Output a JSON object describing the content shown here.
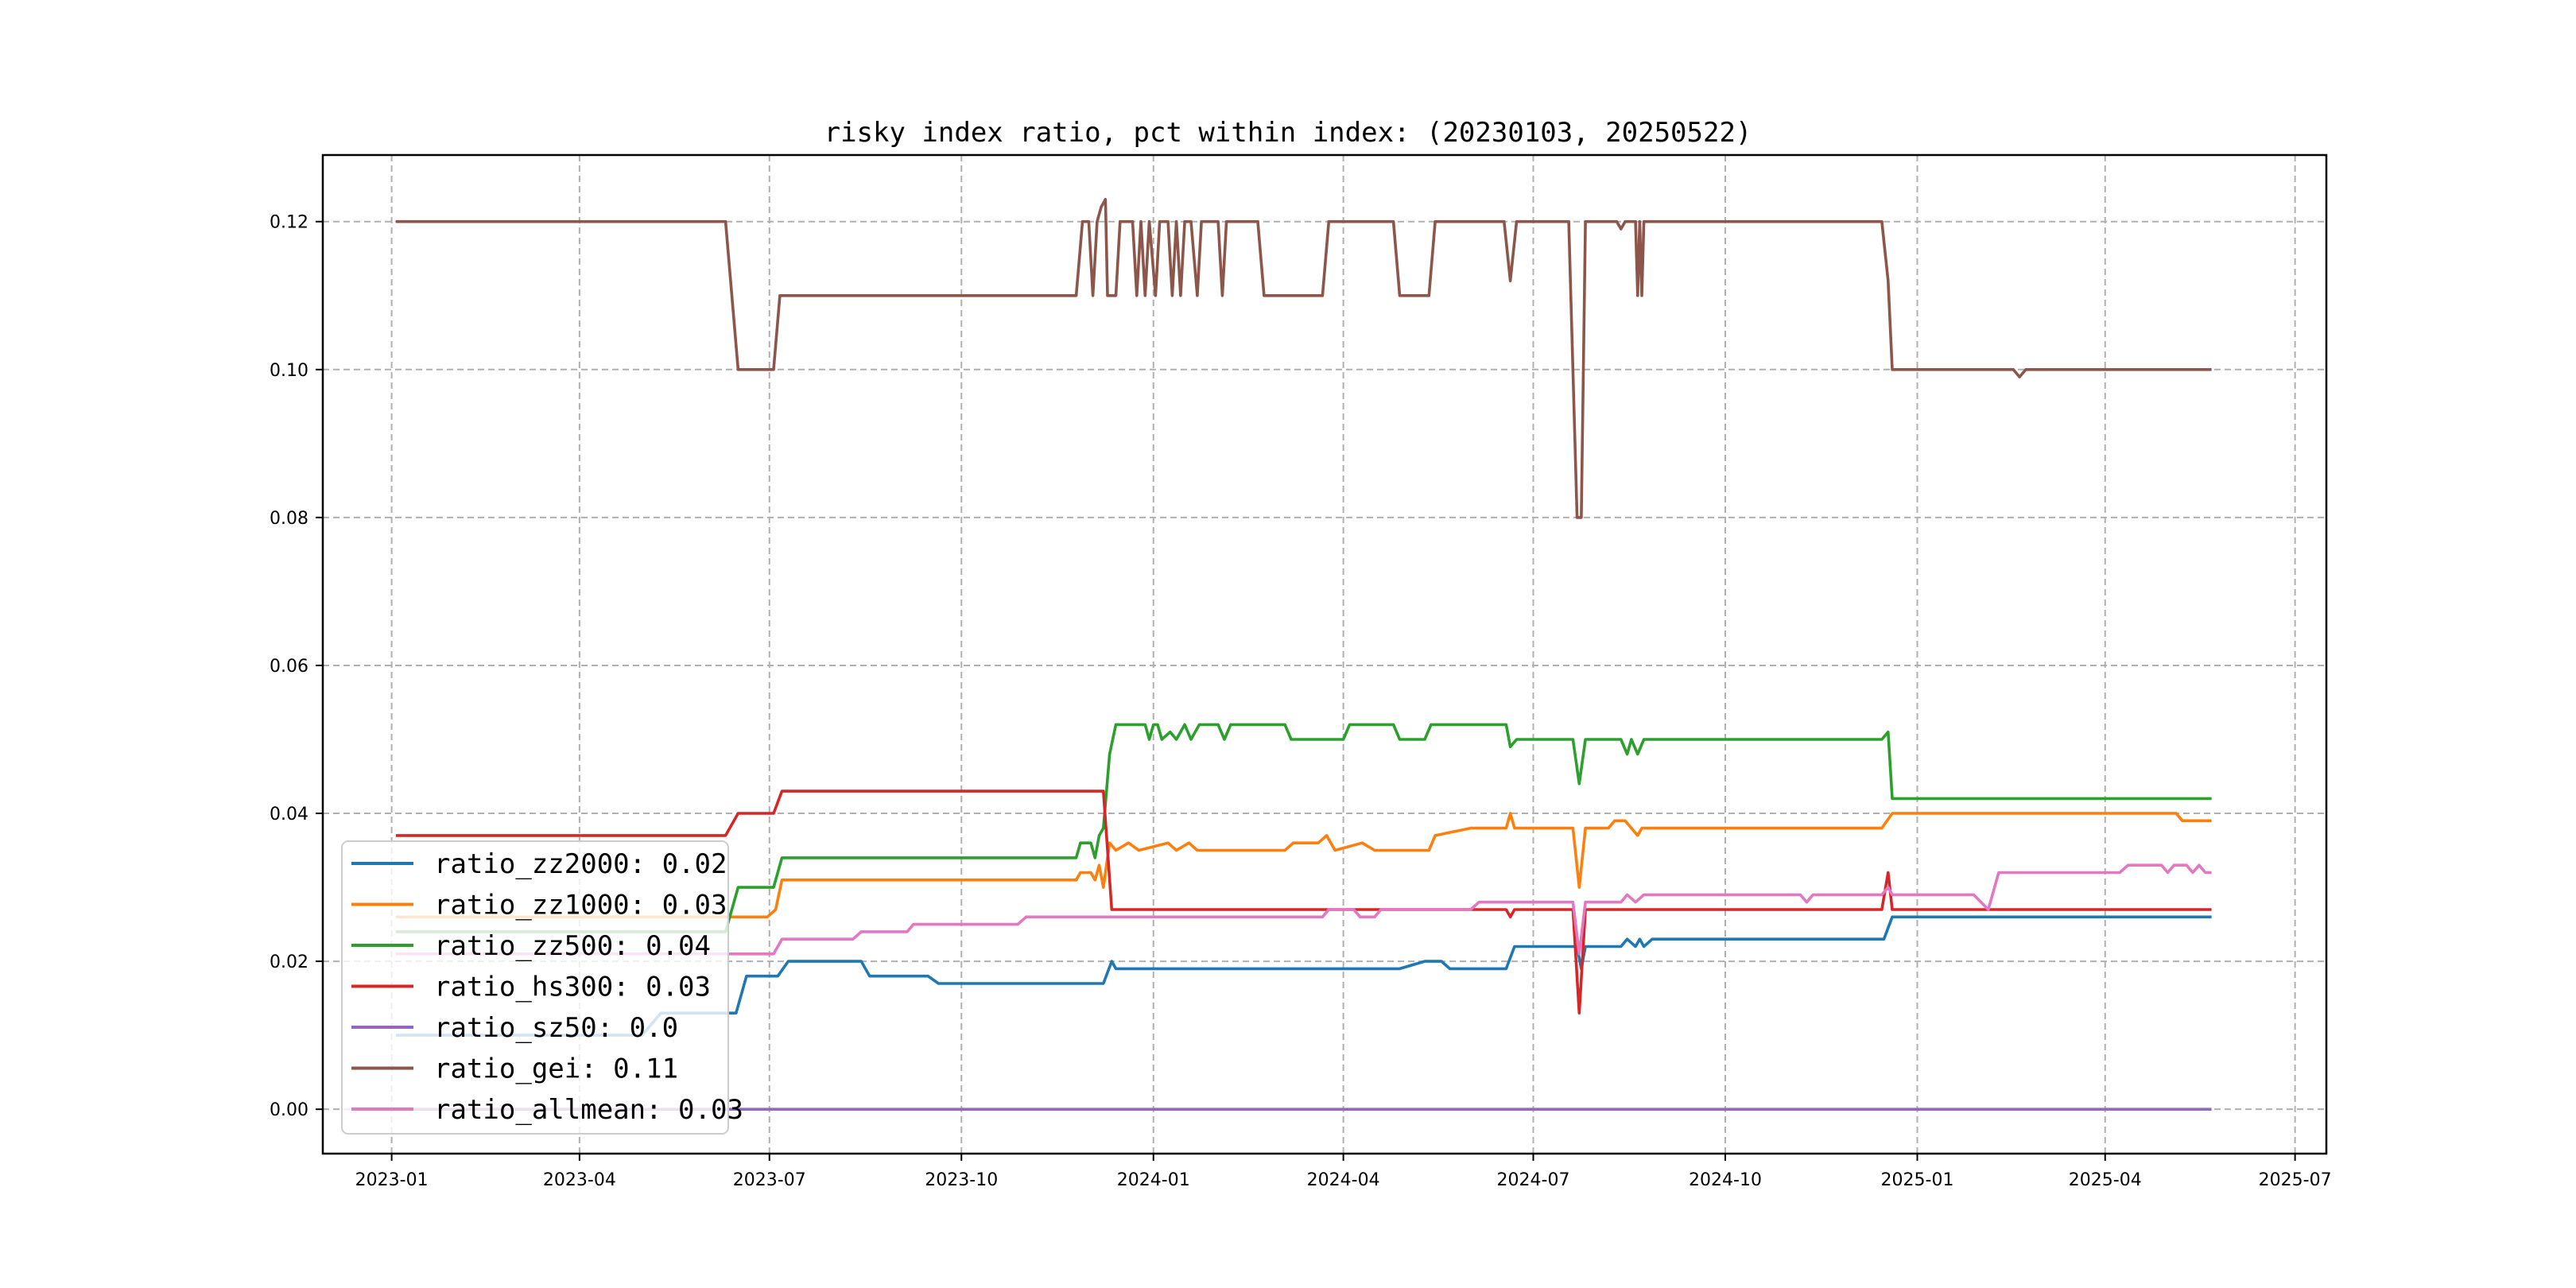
{
  "chart_data": {
    "type": "line",
    "title": "risky index ratio, pct within index: (20230103, 20250522)",
    "xlabel": "",
    "ylabel": "",
    "xlim": [
      "2022-11-29",
      "2025-07-16"
    ],
    "ylim": [
      -0.006,
      0.129
    ],
    "x_ticks": [
      "2023-01",
      "2023-04",
      "2023-07",
      "2023-10",
      "2024-01",
      "2024-04",
      "2024-07",
      "2024-10",
      "2025-01",
      "2025-04",
      "2025-07"
    ],
    "y_ticks": [
      "0.00",
      "0.02",
      "0.04",
      "0.06",
      "0.08",
      "0.10",
      "0.12"
    ],
    "y_tick_values": [
      0.0,
      0.02,
      0.04,
      0.06,
      0.08,
      0.1,
      0.12
    ],
    "grid": true,
    "legend_position": "lower-left",
    "series": [
      {
        "name": "ratio_zz2000: 0.02",
        "color": "#1f77b4",
        "points": [
          [
            "2023-01-03",
            0.01
          ],
          [
            "2023-05-01",
            0.01
          ],
          [
            "2023-05-10",
            0.013
          ],
          [
            "2023-06-15",
            0.013
          ],
          [
            "2023-06-20",
            0.018
          ],
          [
            "2023-07-05",
            0.018
          ],
          [
            "2023-07-10",
            0.02
          ],
          [
            "2023-08-14",
            0.02
          ],
          [
            "2023-08-18",
            0.018
          ],
          [
            "2023-09-15",
            0.018
          ],
          [
            "2023-09-20",
            0.017
          ],
          [
            "2023-12-08",
            0.017
          ],
          [
            "2023-12-12",
            0.02
          ],
          [
            "2023-12-14",
            0.019
          ],
          [
            "2024-04-28",
            0.019
          ],
          [
            "2024-05-10",
            0.02
          ],
          [
            "2024-05-18",
            0.02
          ],
          [
            "2024-05-22",
            0.019
          ],
          [
            "2024-06-18",
            0.019
          ],
          [
            "2024-06-22",
            0.022
          ],
          [
            "2024-07-22",
            0.022
          ],
          [
            "2024-07-24",
            0.019
          ],
          [
            "2024-07-26",
            0.022
          ],
          [
            "2024-08-12",
            0.022
          ],
          [
            "2024-08-15",
            0.023
          ],
          [
            "2024-08-19",
            0.022
          ],
          [
            "2024-08-21",
            0.023
          ],
          [
            "2024-08-23",
            0.022
          ],
          [
            "2024-08-27",
            0.023
          ],
          [
            "2024-12-16",
            0.023
          ],
          [
            "2024-12-20",
            0.026
          ],
          [
            "2025-05-22",
            0.026
          ]
        ]
      },
      {
        "name": "ratio_zz1000: 0.03",
        "color": "#ff7f0e",
        "points": [
          [
            "2023-01-03",
            0.026
          ],
          [
            "2023-06-30",
            0.026
          ],
          [
            "2023-07-04",
            0.027
          ],
          [
            "2023-07-07",
            0.031
          ],
          [
            "2023-11-25",
            0.031
          ],
          [
            "2023-11-27",
            0.032
          ],
          [
            "2023-12-02",
            0.032
          ],
          [
            "2023-12-04",
            0.031
          ],
          [
            "2023-12-06",
            0.033
          ],
          [
            "2023-12-08",
            0.03
          ],
          [
            "2023-12-11",
            0.036
          ],
          [
            "2023-12-14",
            0.035
          ],
          [
            "2023-12-20",
            0.036
          ],
          [
            "2023-12-25",
            0.035
          ],
          [
            "2024-01-08",
            0.036
          ],
          [
            "2024-01-12",
            0.035
          ],
          [
            "2024-01-18",
            0.036
          ],
          [
            "2024-01-22",
            0.035
          ],
          [
            "2024-03-04",
            0.035
          ],
          [
            "2024-03-08",
            0.036
          ],
          [
            "2024-03-20",
            0.036
          ],
          [
            "2024-03-24",
            0.037
          ],
          [
            "2024-03-28",
            0.035
          ],
          [
            "2024-04-10",
            0.036
          ],
          [
            "2024-04-16",
            0.035
          ],
          [
            "2024-05-12",
            0.035
          ],
          [
            "2024-05-15",
            0.037
          ],
          [
            "2024-06-01",
            0.038
          ],
          [
            "2024-06-18",
            0.038
          ],
          [
            "2024-06-20",
            0.04
          ],
          [
            "2024-06-22",
            0.038
          ],
          [
            "2024-07-20",
            0.038
          ],
          [
            "2024-07-23",
            0.03
          ],
          [
            "2024-07-26",
            0.038
          ],
          [
            "2024-08-06",
            0.038
          ],
          [
            "2024-08-09",
            0.039
          ],
          [
            "2024-08-14",
            0.039
          ],
          [
            "2024-08-17",
            0.038
          ],
          [
            "2024-08-20",
            0.037
          ],
          [
            "2024-08-22",
            0.038
          ],
          [
            "2024-12-15",
            0.038
          ],
          [
            "2024-12-20",
            0.04
          ],
          [
            "2025-05-05",
            0.04
          ],
          [
            "2025-05-08",
            0.039
          ],
          [
            "2025-05-22",
            0.039
          ]
        ]
      },
      {
        "name": "ratio_zz500: 0.04",
        "color": "#2ca02c",
        "points": [
          [
            "2023-01-03",
            0.024
          ],
          [
            "2023-06-10",
            0.024
          ],
          [
            "2023-06-16",
            0.03
          ],
          [
            "2023-07-03",
            0.03
          ],
          [
            "2023-07-07",
            0.034
          ],
          [
            "2023-11-25",
            0.034
          ],
          [
            "2023-11-27",
            0.036
          ],
          [
            "2023-12-02",
            0.036
          ],
          [
            "2023-12-04",
            0.034
          ],
          [
            "2023-12-06",
            0.037
          ],
          [
            "2023-12-08",
            0.038
          ],
          [
            "2023-12-11",
            0.048
          ],
          [
            "2023-12-14",
            0.052
          ],
          [
            "2023-12-28",
            0.052
          ],
          [
            "2023-12-30",
            0.05
          ],
          [
            "2024-01-01",
            0.052
          ],
          [
            "2024-01-03",
            0.052
          ],
          [
            "2024-01-05",
            0.05
          ],
          [
            "2024-01-09",
            0.051
          ],
          [
            "2024-01-12",
            0.05
          ],
          [
            "2024-01-16",
            0.052
          ],
          [
            "2024-01-19",
            0.05
          ],
          [
            "2024-01-23",
            0.052
          ],
          [
            "2024-02-01",
            0.052
          ],
          [
            "2024-02-04",
            0.05
          ],
          [
            "2024-02-07",
            0.052
          ],
          [
            "2024-03-04",
            0.052
          ],
          [
            "2024-03-07",
            0.05
          ],
          [
            "2024-04-01",
            0.05
          ],
          [
            "2024-04-04",
            0.052
          ],
          [
            "2024-04-25",
            0.052
          ],
          [
            "2024-04-28",
            0.05
          ],
          [
            "2024-05-10",
            0.05
          ],
          [
            "2024-05-13",
            0.052
          ],
          [
            "2024-06-18",
            0.052
          ],
          [
            "2024-06-20",
            0.049
          ],
          [
            "2024-06-23",
            0.05
          ],
          [
            "2024-07-20",
            0.05
          ],
          [
            "2024-07-23",
            0.044
          ],
          [
            "2024-07-26",
            0.05
          ],
          [
            "2024-08-12",
            0.05
          ],
          [
            "2024-08-15",
            0.048
          ],
          [
            "2024-08-17",
            0.05
          ],
          [
            "2024-08-20",
            0.048
          ],
          [
            "2024-08-23",
            0.05
          ],
          [
            "2024-12-15",
            0.05
          ],
          [
            "2024-12-18",
            0.051
          ],
          [
            "2024-12-20",
            0.042
          ],
          [
            "2025-05-22",
            0.042
          ]
        ]
      },
      {
        "name": "ratio_hs300: 0.03",
        "color": "#d62728",
        "points": [
          [
            "2023-01-03",
            0.037
          ],
          [
            "2023-06-10",
            0.037
          ],
          [
            "2023-06-16",
            0.04
          ],
          [
            "2023-07-03",
            0.04
          ],
          [
            "2023-07-07",
            0.043
          ],
          [
            "2023-12-08",
            0.043
          ],
          [
            "2023-12-12",
            0.027
          ],
          [
            "2024-06-18",
            0.027
          ],
          [
            "2024-06-20",
            0.026
          ],
          [
            "2024-06-22",
            0.027
          ],
          [
            "2024-07-20",
            0.027
          ],
          [
            "2024-07-23",
            0.013
          ],
          [
            "2024-07-26",
            0.027
          ],
          [
            "2024-12-15",
            0.027
          ],
          [
            "2024-12-18",
            0.032
          ],
          [
            "2024-12-20",
            0.027
          ],
          [
            "2025-05-22",
            0.027
          ]
        ]
      },
      {
        "name": "ratio_sz50: 0.0",
        "color": "#9467bd",
        "points": [
          [
            "2023-01-03",
            0.0
          ],
          [
            "2025-05-22",
            0.0
          ]
        ]
      },
      {
        "name": "ratio_gei: 0.11",
        "color": "#8c564b",
        "points": [
          [
            "2023-01-03",
            0.12
          ],
          [
            "2023-06-10",
            0.12
          ],
          [
            "2023-06-13",
            0.11
          ],
          [
            "2023-06-16",
            0.1
          ],
          [
            "2023-07-03",
            0.1
          ],
          [
            "2023-07-06",
            0.11
          ],
          [
            "2023-11-25",
            0.11
          ],
          [
            "2023-11-28",
            0.12
          ],
          [
            "2023-12-01",
            0.12
          ],
          [
            "2023-12-03",
            0.11
          ],
          [
            "2023-12-05",
            0.12
          ],
          [
            "2023-12-07",
            0.122
          ],
          [
            "2023-12-09",
            0.123
          ],
          [
            "2023-12-10",
            0.11
          ],
          [
            "2023-12-14",
            0.11
          ],
          [
            "2023-12-16",
            0.12
          ],
          [
            "2023-12-22",
            0.12
          ],
          [
            "2023-12-24",
            0.11
          ],
          [
            "2023-12-26",
            0.12
          ],
          [
            "2023-12-28",
            0.11
          ],
          [
            "2023-12-30",
            0.12
          ],
          [
            "2024-01-02",
            0.11
          ],
          [
            "2024-01-04",
            0.12
          ],
          [
            "2024-01-08",
            0.12
          ],
          [
            "2024-01-10",
            0.11
          ],
          [
            "2024-01-12",
            0.12
          ],
          [
            "2024-01-14",
            0.11
          ],
          [
            "2024-01-16",
            0.12
          ],
          [
            "2024-01-19",
            0.12
          ],
          [
            "2024-01-22",
            0.11
          ],
          [
            "2024-01-24",
            0.12
          ],
          [
            "2024-02-01",
            0.12
          ],
          [
            "2024-02-03",
            0.11
          ],
          [
            "2024-02-05",
            0.12
          ],
          [
            "2024-02-20",
            0.12
          ],
          [
            "2024-02-23",
            0.11
          ],
          [
            "2024-03-22",
            0.11
          ],
          [
            "2024-03-25",
            0.12
          ],
          [
            "2024-04-25",
            0.12
          ],
          [
            "2024-04-28",
            0.11
          ],
          [
            "2024-05-12",
            0.11
          ],
          [
            "2024-05-15",
            0.12
          ],
          [
            "2024-06-17",
            0.12
          ],
          [
            "2024-06-20",
            0.112
          ],
          [
            "2024-06-23",
            0.12
          ],
          [
            "2024-07-18",
            0.12
          ],
          [
            "2024-07-22",
            0.08
          ],
          [
            "2024-07-24",
            0.08
          ],
          [
            "2024-07-26",
            0.12
          ],
          [
            "2024-08-10",
            0.12
          ],
          [
            "2024-08-12",
            0.119
          ],
          [
            "2024-08-14",
            0.12
          ],
          [
            "2024-08-19",
            0.12
          ],
          [
            "2024-08-20",
            0.11
          ],
          [
            "2024-08-21",
            0.12
          ],
          [
            "2024-08-22",
            0.11
          ],
          [
            "2024-08-23",
            0.12
          ],
          [
            "2024-12-15",
            0.12
          ],
          [
            "2024-12-18",
            0.112
          ],
          [
            "2024-12-20",
            0.1
          ],
          [
            "2025-02-16",
            0.1
          ],
          [
            "2025-02-19",
            0.099
          ],
          [
            "2025-02-22",
            0.1
          ],
          [
            "2025-05-22",
            0.1
          ]
        ]
      },
      {
        "name": "ratio_allmean: 0.03",
        "color": "#e377c2",
        "points": [
          [
            "2023-01-03",
            0.021
          ],
          [
            "2023-07-03",
            0.021
          ],
          [
            "2023-07-07",
            0.023
          ],
          [
            "2023-08-10",
            0.023
          ],
          [
            "2023-08-14",
            0.024
          ],
          [
            "2023-09-05",
            0.024
          ],
          [
            "2023-09-08",
            0.025
          ],
          [
            "2023-10-28",
            0.025
          ],
          [
            "2023-11-01",
            0.026
          ],
          [
            "2024-03-22",
            0.026
          ],
          [
            "2024-03-25",
            0.027
          ],
          [
            "2024-04-06",
            0.027
          ],
          [
            "2024-04-09",
            0.026
          ],
          [
            "2024-04-16",
            0.026
          ],
          [
            "2024-04-19",
            0.027
          ],
          [
            "2024-06-01",
            0.027
          ],
          [
            "2024-06-05",
            0.028
          ],
          [
            "2024-07-20",
            0.028
          ],
          [
            "2024-07-23",
            0.021
          ],
          [
            "2024-07-26",
            0.028
          ],
          [
            "2024-08-12",
            0.028
          ],
          [
            "2024-08-15",
            0.029
          ],
          [
            "2024-08-19",
            0.028
          ],
          [
            "2024-08-23",
            0.029
          ],
          [
            "2024-11-06",
            0.029
          ],
          [
            "2024-11-09",
            0.028
          ],
          [
            "2024-11-12",
            0.029
          ],
          [
            "2024-12-15",
            0.029
          ],
          [
            "2024-12-18",
            0.03
          ],
          [
            "2024-12-20",
            0.029
          ],
          [
            "2025-01-28",
            0.029
          ],
          [
            "2025-02-04",
            0.027
          ],
          [
            "2025-02-09",
            0.032
          ],
          [
            "2025-04-08",
            0.032
          ],
          [
            "2025-04-12",
            0.033
          ],
          [
            "2025-04-28",
            0.033
          ],
          [
            "2025-05-01",
            0.032
          ],
          [
            "2025-05-04",
            0.033
          ],
          [
            "2025-05-10",
            0.033
          ],
          [
            "2025-05-13",
            0.032
          ],
          [
            "2025-05-16",
            0.033
          ],
          [
            "2025-05-19",
            0.032
          ],
          [
            "2025-05-22",
            0.032
          ]
        ]
      }
    ]
  }
}
